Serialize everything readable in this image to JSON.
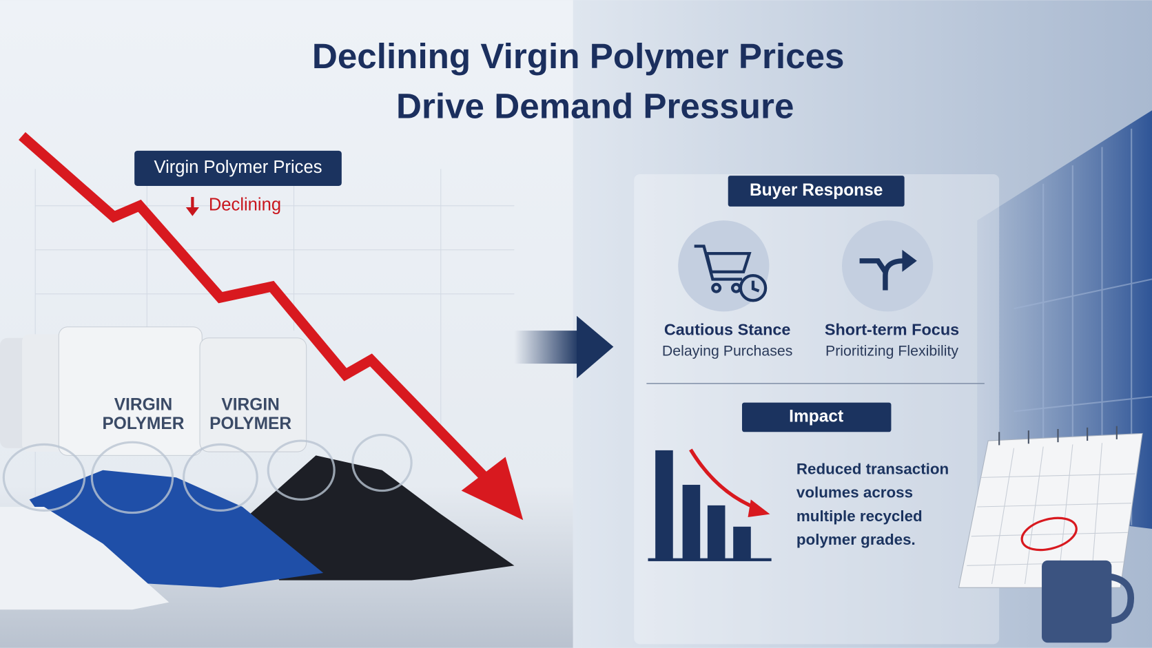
{
  "title": {
    "lines": [
      "Declining Virgin Polymer Prices",
      "Drive Demand Pressure"
    ]
  },
  "left": {
    "label": "Virgin Polymer Prices",
    "trend": "Declining",
    "bags": [
      {
        "lines": [
          "VIRGIN",
          "POLYMER"
        ]
      },
      {
        "lines": [
          "VIRGIN",
          "POLYMER"
        ]
      }
    ]
  },
  "right": {
    "header": "Buyer Response",
    "items": [
      {
        "title": "Cautious Stance",
        "subtitle": "Delaying Purchases"
      },
      {
        "title": "Short-term Focus",
        "subtitle": "Prioritizing Flexibility"
      }
    ],
    "impact": {
      "header": "Impact",
      "text_lines": [
        "Reduced transaction",
        "volumes across",
        "multiple recycled",
        "polymer grades."
      ]
    }
  }
}
